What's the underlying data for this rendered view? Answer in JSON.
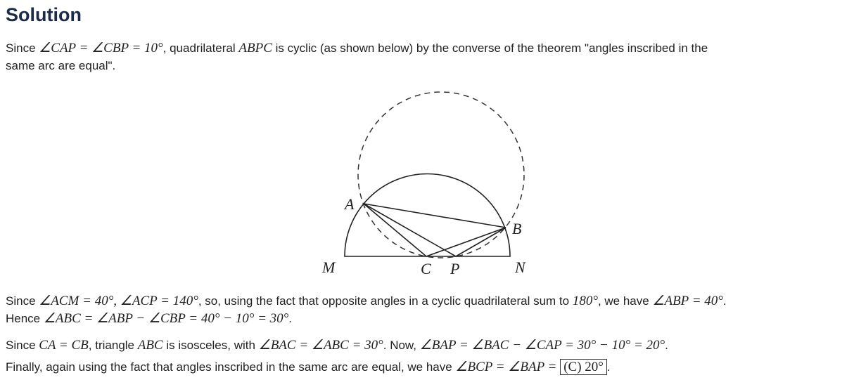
{
  "title": "Solution",
  "paragraphs": [
    [
      [
        "t",
        "Since "
      ],
      [
        "m",
        "∠CAP = ∠CBP = 10°"
      ],
      [
        "t",
        ", quadrilateral "
      ],
      [
        "m",
        "ABPC"
      ],
      [
        "t",
        " is cyclic (as shown below) by the converse of the theorem \"angles inscribed in the"
      ],
      [
        "br",
        ""
      ],
      [
        "t",
        "same arc are equal\"."
      ]
    ],
    [
      [
        "t",
        "Since "
      ],
      [
        "m",
        "∠ACM = 40°, ∠ACP = 140°"
      ],
      [
        "t",
        ", so, using the fact that opposite angles in a cyclic quadrilateral sum to "
      ],
      [
        "m",
        "180°"
      ],
      [
        "t",
        ", we have "
      ],
      [
        "m",
        "∠ABP = 40°"
      ],
      [
        "t",
        "."
      ],
      [
        "br",
        ""
      ],
      [
        "t",
        "Hence "
      ],
      [
        "m",
        "∠ABC = ∠ABP − ∠CBP = 40° − 10° = 30°"
      ],
      [
        "t",
        "."
      ]
    ],
    [
      [
        "t",
        "Since "
      ],
      [
        "m",
        "CA = CB"
      ],
      [
        "t",
        ", triangle "
      ],
      [
        "m",
        "ABC"
      ],
      [
        "t",
        " is isosceles, with "
      ],
      [
        "m",
        "∠BAC = ∠ABC = 30°"
      ],
      [
        "t",
        ". Now, "
      ],
      [
        "m",
        "∠BAP = ∠BAC − ∠CAP = 30° − 10° = 20°"
      ],
      [
        "t",
        "."
      ]
    ],
    [
      [
        "t",
        "Finally, again using the fact that angles inscribed in the same arc are equal, we have "
      ],
      [
        "m",
        "∠BCP = ∠BAP = "
      ],
      [
        "box",
        "(C) 20°"
      ],
      [
        "t",
        "."
      ]
    ]
  ],
  "diagram": {
    "labels": {
      "A": "A",
      "B": "B",
      "C": "C",
      "P": "P",
      "M": "M",
      "N": "N"
    }
  }
}
